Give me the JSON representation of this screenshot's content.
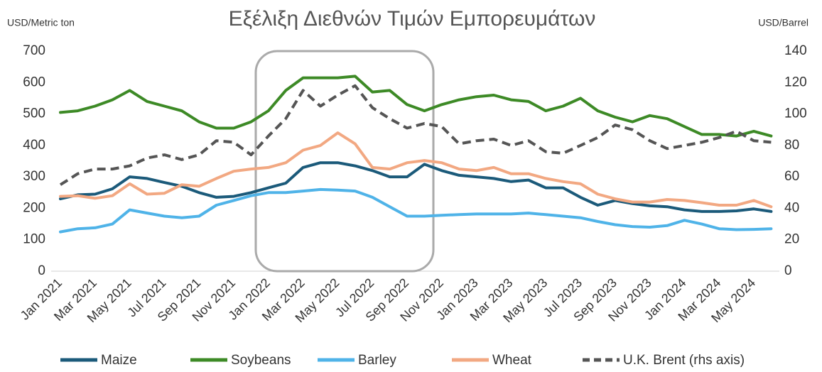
{
  "chart_data": {
    "type": "line",
    "title": "Εξέλιξη Διεθνών  Τιμών Εμπορευμάτων",
    "y_label": "USD/Metric ton",
    "y2_label": "USD/Barrel",
    "categories": [
      "Jan 2021",
      null,
      "Mar 2021",
      null,
      "May 2021",
      null,
      "Jul 2021",
      null,
      "Sep 2021",
      null,
      "Nov 2021",
      null,
      "Jan 2022",
      null,
      "Mar 2022",
      null,
      "May 2022",
      null,
      "Jul 2022",
      null,
      "Sep 2022",
      null,
      "Nov 2022",
      null,
      "Jan 2023",
      null,
      "Mar 2023",
      null,
      "May 2023",
      null,
      "Jul 2023",
      null,
      "Sep 2023",
      null,
      "Nov 2023",
      null,
      "Jan 2024",
      null,
      "Mar 2024",
      null,
      "May 2024",
      null
    ],
    "series": [
      {
        "name": "Maize",
        "color": "#1b5a7a",
        "values": [
          230,
          243,
          245,
          262,
          300,
          295,
          282,
          270,
          250,
          235,
          238,
          250,
          265,
          280,
          330,
          345,
          345,
          335,
          320,
          300,
          300,
          340,
          320,
          305,
          300,
          295,
          285,
          290,
          265,
          265,
          235,
          210,
          225,
          215,
          208,
          205,
          195,
          190,
          190,
          192,
          198,
          190
        ]
      },
      {
        "name": "Soybeans",
        "color": "#3d8a26",
        "values": [
          505,
          510,
          525,
          545,
          575,
          540,
          525,
          510,
          475,
          455,
          455,
          475,
          510,
          575,
          615,
          615,
          615,
          620,
          570,
          575,
          530,
          510,
          530,
          545,
          555,
          560,
          545,
          540,
          510,
          525,
          550,
          510,
          490,
          475,
          495,
          485,
          460,
          435,
          435,
          430,
          445,
          430
        ]
      },
      {
        "name": "Barley",
        "color": "#4fb3e8",
        "values": [
          125,
          135,
          138,
          150,
          195,
          185,
          175,
          170,
          175,
          210,
          225,
          240,
          250,
          250,
          255,
          260,
          258,
          255,
          235,
          205,
          175,
          175,
          178,
          180,
          182,
          182,
          182,
          185,
          180,
          175,
          170,
          158,
          148,
          142,
          140,
          145,
          162,
          150,
          135,
          132,
          133,
          135
        ]
      },
      {
        "name": "Wheat",
        "color": "#f2a882",
        "values": [
          238,
          240,
          232,
          240,
          278,
          245,
          248,
          275,
          270,
          295,
          318,
          325,
          330,
          345,
          385,
          400,
          440,
          405,
          330,
          325,
          345,
          352,
          345,
          325,
          320,
          330,
          310,
          310,
          295,
          285,
          278,
          245,
          230,
          220,
          220,
          228,
          225,
          218,
          210,
          210,
          225,
          205
        ]
      },
      {
        "name": "U.K. Brent (rhs axis)",
        "color": "#555555",
        "line_style": "dashed",
        "axis": "y2",
        "values": [
          55,
          62,
          65,
          65,
          67,
          72,
          74,
          71,
          74,
          83,
          82,
          74,
          86,
          97,
          115,
          105,
          112,
          118,
          104,
          97,
          91,
          94,
          92,
          81,
          83,
          84,
          80,
          83,
          76,
          75,
          80,
          85,
          93,
          90,
          83,
          78,
          80,
          82,
          85,
          89,
          83,
          82
        ]
      }
    ],
    "ylim": [
      0,
      700
    ],
    "yticks": [
      0,
      100,
      200,
      300,
      400,
      500,
      600,
      700
    ],
    "y2lim": [
      0,
      140
    ],
    "y2ticks": [
      0,
      20,
      40,
      60,
      80,
      100,
      120,
      140
    ],
    "legend": "bottom"
  }
}
